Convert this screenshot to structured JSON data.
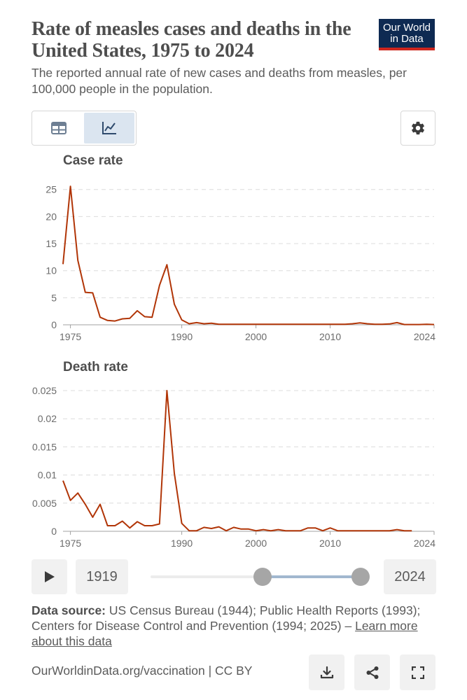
{
  "header": {
    "title": "Rate of measles cases and deaths in the United States, 1975 to 2024",
    "subtitle": "The reported annual rate of new cases and deaths from measles, per 100,000 people in the population.",
    "logo_line1": "Our World",
    "logo_line2": "in Data"
  },
  "toolbar": {
    "table_tab_icon": "table-icon",
    "chart_tab_icon": "line-chart-icon",
    "active_tab": "chart",
    "settings_icon": "gear-icon"
  },
  "colors": {
    "line": "#b13507",
    "accent": "#ce261e",
    "logo_bg": "#0e2a52",
    "slider_fill": "#a1b7cf"
  },
  "chart_data": [
    {
      "type": "line",
      "title": "Case rate",
      "x_ticks": [
        1975,
        1990,
        2000,
        2010,
        2024
      ],
      "y_ticks": [
        0,
        5,
        10,
        15,
        20,
        25
      ],
      "y_tick_labels": [
        "0",
        "5",
        "10",
        "15",
        "20",
        "25"
      ],
      "ylim": [
        0,
        26
      ],
      "xlim": [
        1974,
        2024
      ],
      "grid": true,
      "series": [
        {
          "x": [
            1974,
            1975,
            1976,
            1977,
            1978,
            1979,
            1980,
            1981,
            1982,
            1983,
            1984,
            1985,
            1986,
            1987,
            1988,
            1989,
            1990,
            1991,
            1992,
            1993,
            1994,
            1995,
            1996,
            1997,
            1998,
            1999,
            2000,
            2001,
            2002,
            2003,
            2004,
            2005,
            2006,
            2007,
            2008,
            2009,
            2010,
            2011,
            2012,
            2013,
            2014,
            2015,
            2016,
            2017,
            2018,
            2019,
            2020,
            2021,
            2022,
            2023,
            2024
          ],
          "values": [
            11.2,
            25.6,
            11.9,
            6.0,
            5.9,
            1.4,
            0.8,
            0.7,
            1.1,
            1.2,
            2.6,
            1.5,
            1.4,
            7.3,
            11.1,
            3.8,
            0.9,
            0.2,
            0.4,
            0.2,
            0.3,
            0.1,
            0.1,
            0.1,
            0.1,
            0.1,
            0.1,
            0.1,
            0.1,
            0.1,
            0.1,
            0.1,
            0.1,
            0.1,
            0.1,
            0.1,
            0.1,
            0.1,
            0.1,
            0.2,
            0.35,
            0.2,
            0.1,
            0.1,
            0.15,
            0.4,
            0.05,
            0.05,
            0.05,
            0.1,
            0.05
          ]
        }
      ]
    },
    {
      "type": "line",
      "title": "Death rate",
      "x_ticks": [
        1975,
        1990,
        2000,
        2010,
        2024
      ],
      "y_ticks": [
        0,
        0.005,
        0.01,
        0.015,
        0.02,
        0.025
      ],
      "y_tick_labels": [
        "0",
        "0.005",
        "0.01",
        "0.015",
        "0.02",
        "0.025"
      ],
      "ylim": [
        0,
        0.025
      ],
      "xlim": [
        1974,
        2024
      ],
      "grid": true,
      "series": [
        {
          "x": [
            1974,
            1975,
            1976,
            1977,
            1978,
            1979,
            1980,
            1981,
            1982,
            1983,
            1984,
            1985,
            1986,
            1987,
            1988,
            1989,
            1990,
            1991,
            1992,
            1993,
            1994,
            1995,
            1996,
            1997,
            1998,
            1999,
            2000,
            2001,
            2002,
            2003,
            2004,
            2005,
            2006,
            2007,
            2008,
            2009,
            2010,
            2011,
            2012,
            2013,
            2014,
            2015,
            2016,
            2017,
            2018,
            2019,
            2020,
            2021
          ],
          "values": [
            0.009,
            0.0055,
            0.0068,
            0.0048,
            0.0025,
            0.0048,
            0.001,
            0.001,
            0.0018,
            0.0006,
            0.0017,
            0.001,
            0.001,
            0.0013,
            0.025,
            0.0103,
            0.0014,
            0.0001,
            0.0001,
            0.0007,
            0.0005,
            0.0008,
            0.0001,
            0.0007,
            0.0004,
            0.0004,
            0.0001,
            0.0003,
            0.0001,
            0.0003,
            0.0001,
            0.0001,
            0.0001,
            0.0006,
            0.0006,
            0.0001,
            0.0006,
            0.0001,
            0.0001,
            0.0001,
            0.0001,
            0.0001,
            0.0001,
            0.0001,
            0.0001,
            0.0003,
            0.0001,
            0.0001
          ]
        }
      ]
    }
  ],
  "timeline": {
    "play_icon": "play-icon",
    "start_year": "1919",
    "end_year": "2024",
    "range_min": 1919,
    "range_max": 2024,
    "selected_start": 1975,
    "selected_end": 2024
  },
  "source": {
    "label": "Data source:",
    "text": "US Census Bureau (1944); Public Health Reports (1993); Centers for Disease Control and Prevention (1994; 2025) –",
    "link": "Learn more about this data"
  },
  "footer": {
    "url": "OurWorldinData.org/vaccination | CC BY",
    "download_icon": "download-icon",
    "share_icon": "share-icon",
    "fullscreen_icon": "fullscreen-icon"
  }
}
